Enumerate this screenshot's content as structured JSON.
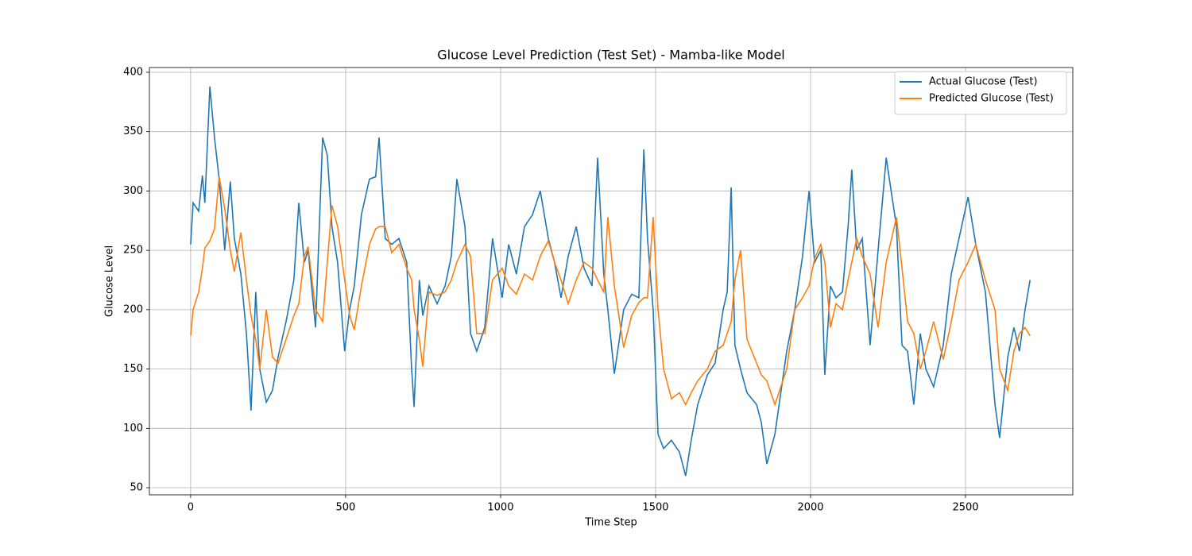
{
  "chart_data": {
    "type": "line",
    "title": "Glucose Level Prediction (Test Set) - Mamba-like Model",
    "x_label": "Time Step",
    "y_label": "Glucose Level",
    "x": [
      0,
      8,
      26,
      38,
      46,
      62,
      77,
      92,
      110,
      128,
      141,
      162,
      180,
      195,
      210,
      223,
      244,
      264,
      282,
      308,
      333,
      349,
      367,
      379,
      403,
      426,
      441,
      456,
      474,
      497,
      513,
      528,
      551,
      577,
      597,
      608,
      628,
      649,
      672,
      697,
      713,
      721,
      738,
      749,
      769,
      795,
      821,
      841,
      859,
      885,
      903,
      923,
      949,
      974,
      1005,
      1026,
      1051,
      1077,
      1103,
      1128,
      1154,
      1174,
      1195,
      1218,
      1244,
      1269,
      1295,
      1313,
      1333,
      1346,
      1367,
      1397,
      1423,
      1446,
      1462,
      1474,
      1492,
      1508,
      1526,
      1551,
      1577,
      1597,
      1615,
      1636,
      1667,
      1692,
      1718,
      1731,
      1744,
      1756,
      1774,
      1795,
      1826,
      1841,
      1859,
      1885,
      1923,
      1949,
      1974,
      1995,
      2013,
      2033,
      2046,
      2064,
      2082,
      2103,
      2121,
      2133,
      2149,
      2167,
      2192,
      2218,
      2244,
      2277,
      2295,
      2313,
      2333,
      2354,
      2372,
      2397,
      2428,
      2454,
      2479,
      2508,
      2533,
      2564,
      2595,
      2610,
      2636,
      2656,
      2674,
      2692,
      2708
    ],
    "series": [
      {
        "name": "Actual Glucose (Test)",
        "color": "#1f77b4",
        "values": [
          255,
          290,
          283,
          313,
          290,
          388,
          345,
          310,
          250,
          308,
          260,
          230,
          180,
          115,
          215,
          150,
          122,
          132,
          160,
          190,
          225,
          290,
          240,
          250,
          185,
          345,
          330,
          270,
          240,
          165,
          200,
          220,
          280,
          310,
          312,
          345,
          260,
          255,
          260,
          240,
          150,
          118,
          225,
          195,
          220,
          205,
          220,
          245,
          310,
          270,
          180,
          165,
          185,
          260,
          210,
          255,
          230,
          270,
          280,
          300,
          260,
          240,
          210,
          245,
          270,
          235,
          220,
          328,
          230,
          200,
          146,
          200,
          213,
          210,
          335,
          260,
          200,
          95,
          83,
          90,
          80,
          60,
          90,
          120,
          145,
          155,
          200,
          215,
          303,
          170,
          150,
          130,
          120,
          105,
          70,
          95,
          165,
          200,
          245,
          300,
          240,
          250,
          145,
          220,
          210,
          215,
          270,
          318,
          250,
          260,
          170,
          250,
          328,
          270,
          170,
          165,
          120,
          180,
          150,
          135,
          170,
          230,
          260,
          295,
          255,
          215,
          120,
          92,
          160,
          185,
          165,
          200,
          225
        ]
      },
      {
        "name": "Predicted Glucose (Test)",
        "color": "#ff7f0e",
        "values": [
          178,
          200,
          215,
          235,
          252,
          258,
          268,
          312,
          285,
          250,
          232,
          265,
          225,
          195,
          175,
          150,
          200,
          160,
          155,
          175,
          195,
          205,
          245,
          253,
          200,
          190,
          240,
          288,
          270,
          225,
          195,
          183,
          220,
          255,
          268,
          270,
          270,
          248,
          255,
          235,
          225,
          200,
          175,
          152,
          215,
          212,
          215,
          225,
          240,
          255,
          245,
          180,
          180,
          225,
          235,
          220,
          213,
          230,
          225,
          245,
          258,
          240,
          225,
          205,
          225,
          240,
          235,
          225,
          215,
          278,
          220,
          168,
          195,
          206,
          210,
          210,
          278,
          200,
          150,
          125,
          130,
          120,
          130,
          140,
          150,
          165,
          170,
          180,
          190,
          225,
          250,
          175,
          155,
          145,
          140,
          120,
          150,
          200,
          210,
          220,
          243,
          255,
          240,
          185,
          205,
          200,
          225,
          240,
          260,
          245,
          230,
          185,
          240,
          278,
          235,
          190,
          180,
          150,
          165,
          190,
          158,
          190,
          225,
          240,
          255,
          225,
          200,
          150,
          132,
          165,
          180,
          185,
          178
        ]
      }
    ],
    "xlim": [
      -133,
      2846
    ],
    "ylim": [
      44,
      404
    ],
    "xticks": [
      0,
      500,
      1000,
      1500,
      2000,
      2500
    ],
    "yticks": [
      50,
      100,
      150,
      200,
      250,
      300,
      350,
      400
    ],
    "grid": true,
    "legend": "upper right"
  }
}
